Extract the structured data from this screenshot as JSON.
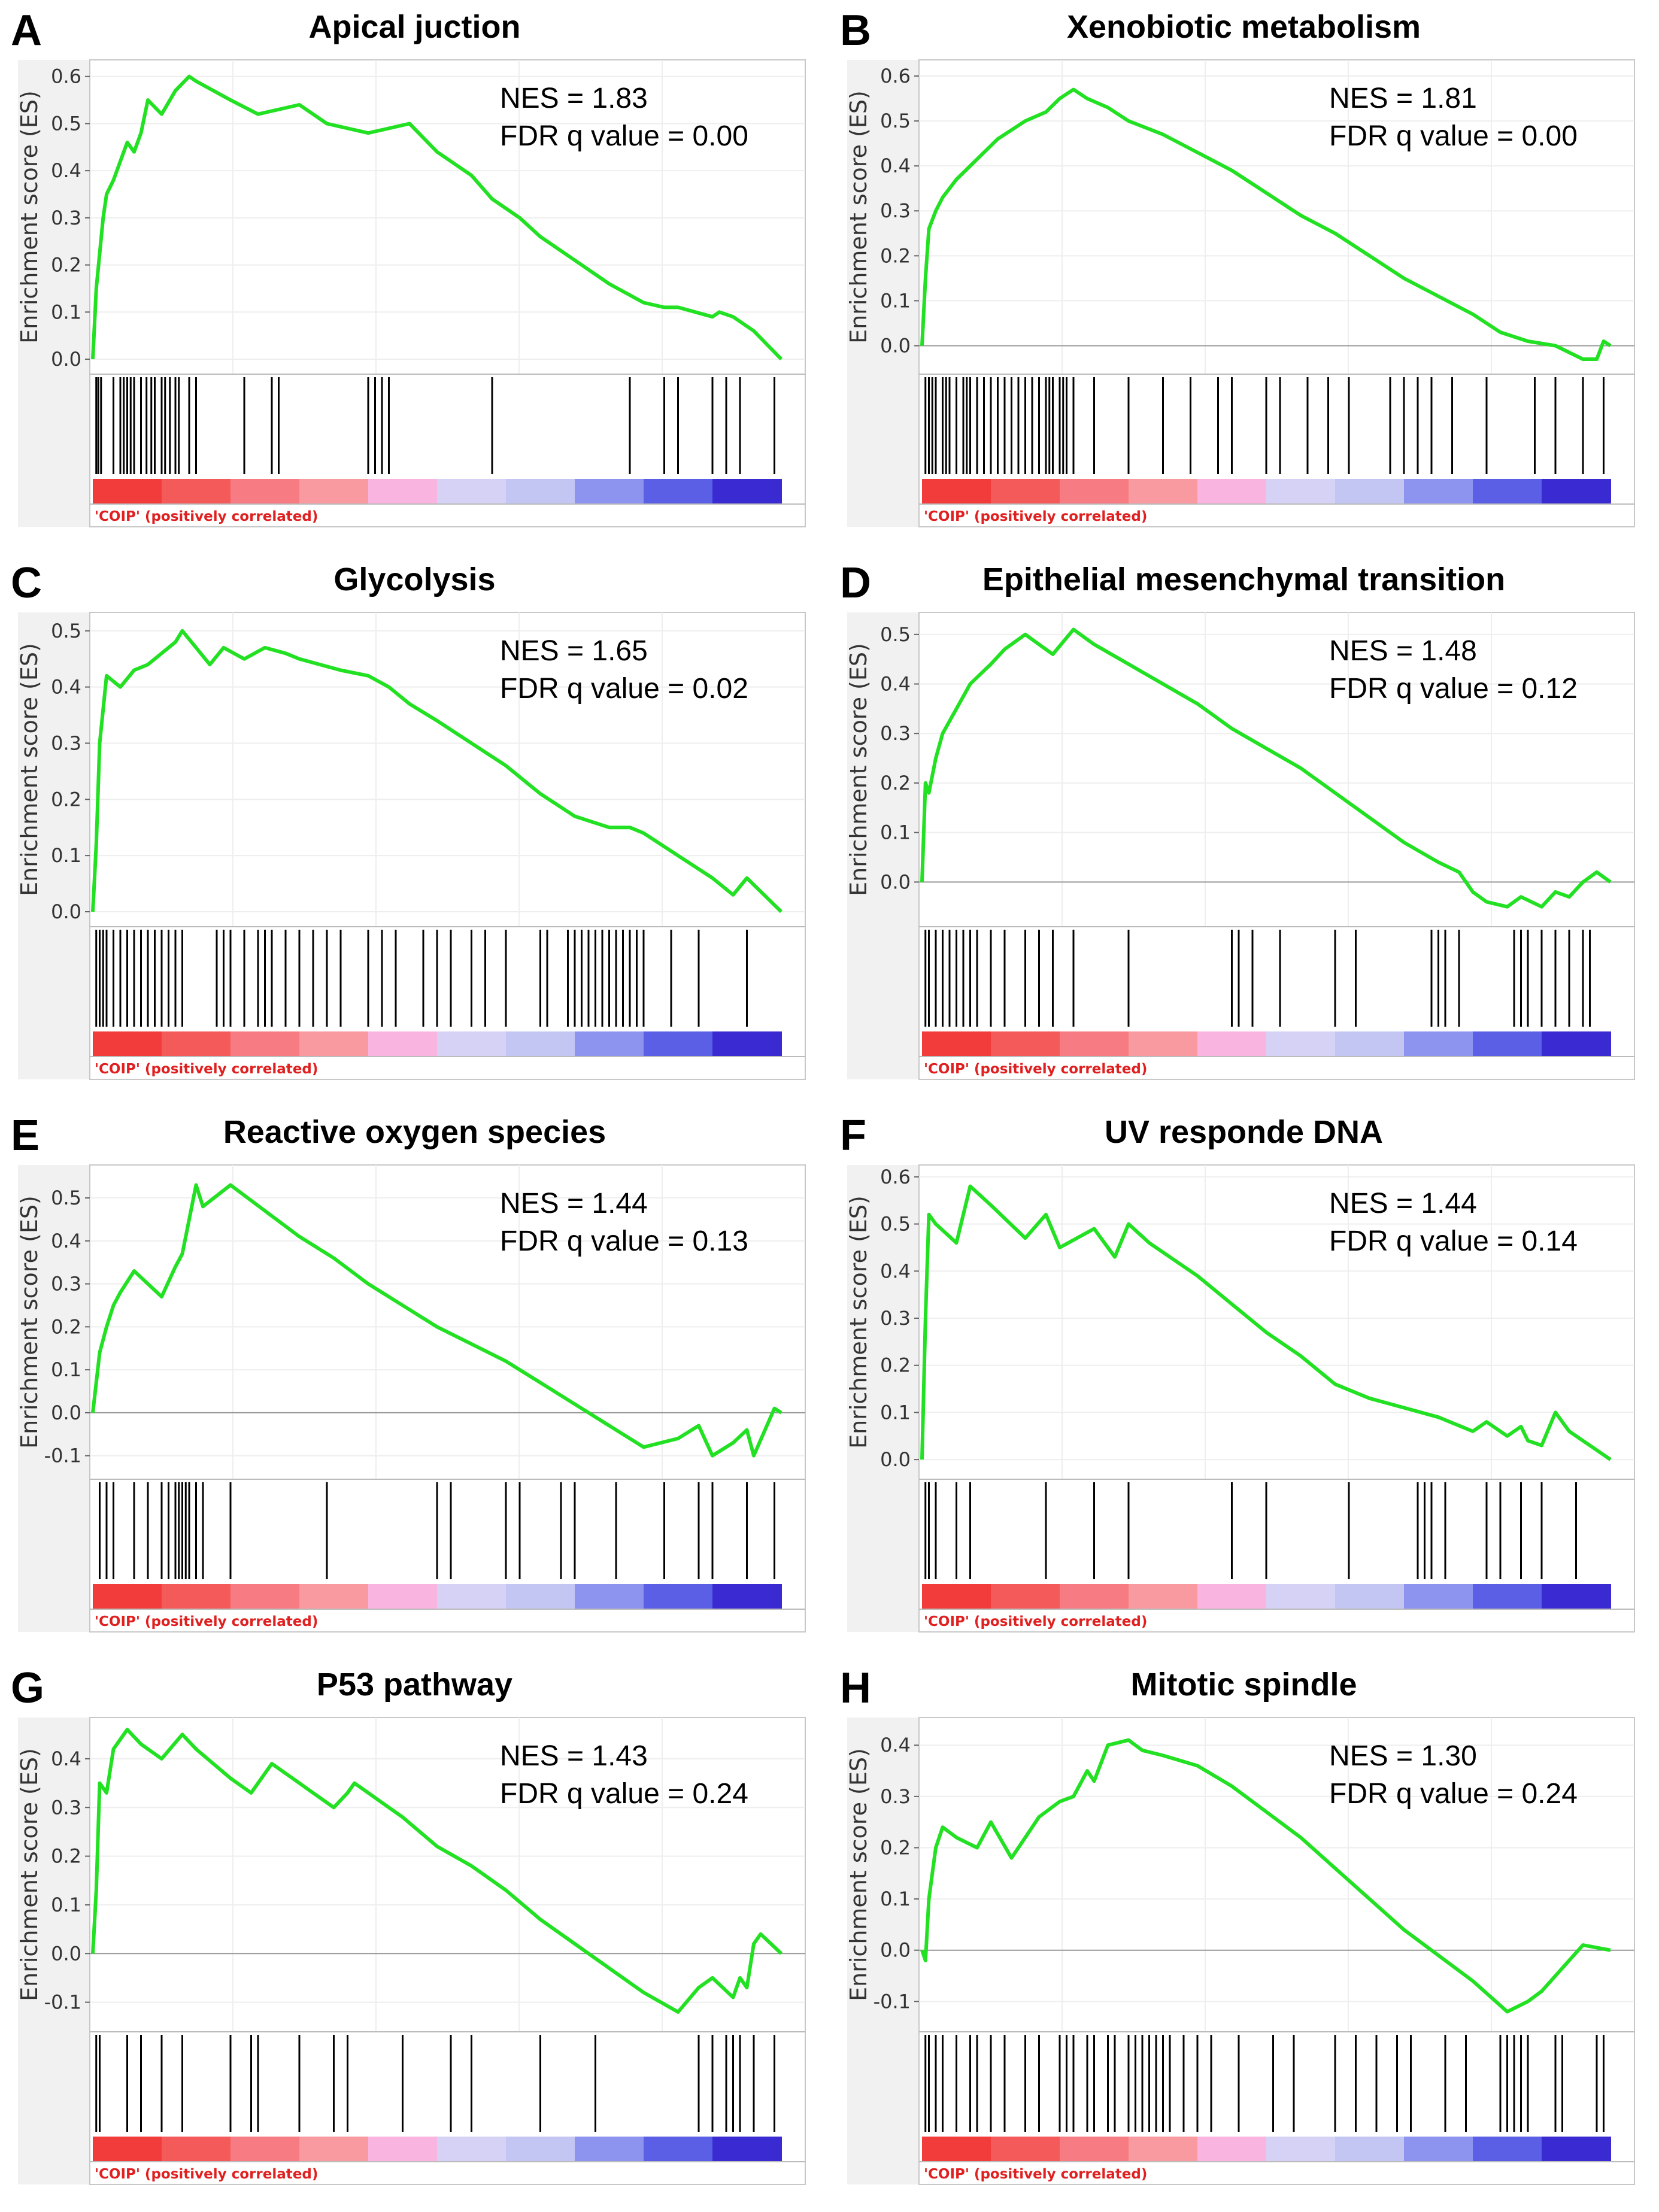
{
  "figure": {
    "ylabel": "Enrichment score (ES)",
    "phenotype_label": "'COIP' (positively correlated)",
    "nes_prefix": "NES = ",
    "fdr_prefix": "FDR q value = ",
    "line_color": "#22e022",
    "gradient_colors": [
      "#f23b3b",
      "#f55a5a",
      "#f77b82",
      "#f99aa0",
      "#f9b4e0",
      "#d6d2f5",
      "#c3c6f2",
      "#8d94ef",
      "#5a5fe5",
      "#3a2ad2"
    ]
  },
  "panels": [
    {
      "letter": "A",
      "title": "Apical  juction",
      "nes": "1.83",
      "fdr": "0.00",
      "chart_data": {
        "type": "line",
        "title": "Apical  juction",
        "ylabel": "Enrichment score (ES)",
        "yticks": [
          "0.0",
          "0.1",
          "0.2",
          "0.3",
          "0.4",
          "0.5",
          "0.6"
        ],
        "ylim": [
          0,
          0.62
        ],
        "xlim": [
          0,
          1
        ],
        "zero_line": false,
        "x": [
          0,
          0.005,
          0.015,
          0.02,
          0.03,
          0.04,
          0.05,
          0.06,
          0.07,
          0.08,
          0.1,
          0.12,
          0.14,
          0.15,
          0.2,
          0.24,
          0.3,
          0.34,
          0.4,
          0.46,
          0.5,
          0.55,
          0.58,
          0.62,
          0.65,
          0.7,
          0.75,
          0.8,
          0.83,
          0.85,
          0.9,
          0.91,
          0.93,
          0.96,
          1.0
        ],
        "y": [
          0,
          0.15,
          0.3,
          0.35,
          0.38,
          0.42,
          0.46,
          0.44,
          0.48,
          0.55,
          0.52,
          0.57,
          0.6,
          0.59,
          0.55,
          0.52,
          0.54,
          0.5,
          0.48,
          0.5,
          0.44,
          0.39,
          0.34,
          0.3,
          0.26,
          0.21,
          0.16,
          0.12,
          0.11,
          0.11,
          0.09,
          0.1,
          0.09,
          0.06,
          0.0
        ],
        "hits": [
          0.005,
          0.008,
          0.012,
          0.03,
          0.04,
          0.045,
          0.05,
          0.055,
          0.06,
          0.07,
          0.078,
          0.085,
          0.09,
          0.1,
          0.105,
          0.112,
          0.12,
          0.125,
          0.14,
          0.15,
          0.22,
          0.26,
          0.27,
          0.4,
          0.41,
          0.42,
          0.43,
          0.58,
          0.78,
          0.83,
          0.85,
          0.9,
          0.92,
          0.94,
          0.99
        ]
      }
    },
    {
      "letter": "B",
      "title": "Xenobiotic metabolism",
      "nes": "1.81",
      "fdr": "0.00",
      "chart_data": {
        "type": "line",
        "title": "Xenobiotic metabolism",
        "ylabel": "Enrichment score (ES)",
        "yticks": [
          "0.0",
          "0.1",
          "0.2",
          "0.3",
          "0.4",
          "0.5",
          "0.6"
        ],
        "ylim": [
          -0.03,
          0.62
        ],
        "xlim": [
          0,
          1
        ],
        "zero_line": true,
        "x": [
          0,
          0.005,
          0.01,
          0.02,
          0.03,
          0.05,
          0.07,
          0.09,
          0.11,
          0.13,
          0.15,
          0.18,
          0.2,
          0.22,
          0.24,
          0.27,
          0.3,
          0.35,
          0.4,
          0.45,
          0.5,
          0.55,
          0.6,
          0.65,
          0.7,
          0.75,
          0.8,
          0.84,
          0.88,
          0.92,
          0.96,
          0.98,
          0.99,
          1.0
        ],
        "y": [
          0,
          0.15,
          0.26,
          0.3,
          0.33,
          0.37,
          0.4,
          0.43,
          0.46,
          0.48,
          0.5,
          0.52,
          0.55,
          0.57,
          0.55,
          0.53,
          0.5,
          0.47,
          0.43,
          0.39,
          0.34,
          0.29,
          0.25,
          0.2,
          0.15,
          0.11,
          0.07,
          0.03,
          0.01,
          0.0,
          -0.03,
          -0.03,
          0.01,
          0.0
        ],
        "hits": [
          0.005,
          0.01,
          0.015,
          0.02,
          0.03,
          0.035,
          0.04,
          0.05,
          0.06,
          0.065,
          0.07,
          0.08,
          0.09,
          0.1,
          0.11,
          0.12,
          0.13,
          0.14,
          0.15,
          0.16,
          0.17,
          0.18,
          0.185,
          0.19,
          0.2,
          0.205,
          0.21,
          0.22,
          0.25,
          0.3,
          0.35,
          0.39,
          0.43,
          0.45,
          0.5,
          0.52,
          0.56,
          0.59,
          0.62,
          0.68,
          0.7,
          0.72,
          0.74,
          0.77,
          0.82,
          0.89,
          0.92,
          0.96,
          0.99
        ]
      }
    },
    {
      "letter": "C",
      "title": "Glycolysis",
      "nes": "1.65",
      "fdr": "0.02",
      "chart_data": {
        "type": "line",
        "title": "Glycolysis",
        "ylabel": "Enrichment score (ES)",
        "yticks": [
          "0.0",
          "0.1",
          "0.2",
          "0.3",
          "0.4",
          "0.5"
        ],
        "ylim": [
          0,
          0.52
        ],
        "xlim": [
          0,
          1
        ],
        "zero_line": false,
        "x": [
          0,
          0.005,
          0.01,
          0.02,
          0.04,
          0.06,
          0.08,
          0.1,
          0.12,
          0.13,
          0.15,
          0.17,
          0.19,
          0.22,
          0.25,
          0.28,
          0.3,
          0.33,
          0.36,
          0.4,
          0.43,
          0.46,
          0.5,
          0.55,
          0.6,
          0.65,
          0.7,
          0.75,
          0.78,
          0.8,
          0.85,
          0.9,
          0.93,
          0.95,
          1.0
        ],
        "y": [
          0,
          0.12,
          0.3,
          0.42,
          0.4,
          0.43,
          0.44,
          0.46,
          0.48,
          0.5,
          0.47,
          0.44,
          0.47,
          0.45,
          0.47,
          0.46,
          0.45,
          0.44,
          0.43,
          0.42,
          0.4,
          0.37,
          0.34,
          0.3,
          0.26,
          0.21,
          0.17,
          0.15,
          0.15,
          0.14,
          0.1,
          0.06,
          0.03,
          0.06,
          0.0
        ],
        "hits": [
          0.005,
          0.01,
          0.015,
          0.02,
          0.03,
          0.04,
          0.05,
          0.06,
          0.07,
          0.08,
          0.09,
          0.1,
          0.11,
          0.12,
          0.13,
          0.18,
          0.19,
          0.2,
          0.22,
          0.24,
          0.25,
          0.26,
          0.28,
          0.3,
          0.32,
          0.34,
          0.36,
          0.4,
          0.42,
          0.44,
          0.48,
          0.5,
          0.52,
          0.55,
          0.57,
          0.6,
          0.65,
          0.66,
          0.69,
          0.7,
          0.71,
          0.72,
          0.73,
          0.74,
          0.75,
          0.76,
          0.77,
          0.78,
          0.79,
          0.8,
          0.84,
          0.88,
          0.95
        ]
      }
    },
    {
      "letter": "D",
      "title": "Epithelial mesenchymal transition",
      "nes": "1.48",
      "fdr": "0.12",
      "chart_data": {
        "type": "line",
        "title": "Epithelial mesenchymal transition",
        "ylabel": "Enrichment score (ES)",
        "yticks": [
          "0.0",
          "0.1",
          "0.2",
          "0.3",
          "0.4",
          "0.5"
        ],
        "ylim": [
          -0.06,
          0.53
        ],
        "xlim": [
          0,
          1
        ],
        "zero_line": true,
        "x": [
          0,
          0.005,
          0.01,
          0.02,
          0.03,
          0.05,
          0.07,
          0.1,
          0.12,
          0.15,
          0.17,
          0.19,
          0.22,
          0.25,
          0.3,
          0.35,
          0.4,
          0.45,
          0.5,
          0.55,
          0.6,
          0.65,
          0.7,
          0.75,
          0.78,
          0.8,
          0.82,
          0.85,
          0.87,
          0.9,
          0.92,
          0.94,
          0.96,
          0.98,
          1.0
        ],
        "y": [
          0,
          0.2,
          0.18,
          0.25,
          0.3,
          0.35,
          0.4,
          0.44,
          0.47,
          0.5,
          0.48,
          0.46,
          0.51,
          0.48,
          0.44,
          0.4,
          0.36,
          0.31,
          0.27,
          0.23,
          0.18,
          0.13,
          0.08,
          0.04,
          0.02,
          -0.02,
          -0.04,
          -0.05,
          -0.03,
          -0.05,
          -0.02,
          -0.03,
          0.0,
          0.02,
          0.0
        ],
        "hits": [
          0.005,
          0.01,
          0.02,
          0.03,
          0.04,
          0.05,
          0.06,
          0.07,
          0.08,
          0.1,
          0.12,
          0.15,
          0.17,
          0.19,
          0.22,
          0.3,
          0.45,
          0.46,
          0.48,
          0.52,
          0.6,
          0.63,
          0.74,
          0.75,
          0.76,
          0.78,
          0.86,
          0.87,
          0.88,
          0.9,
          0.92,
          0.94,
          0.96,
          0.97
        ]
      }
    },
    {
      "letter": "E",
      "title": "Reactive oxygen species",
      "nes": "1.44",
      "fdr": "0.13",
      "chart_data": {
        "type": "line",
        "title": "Reactive oxygen species",
        "ylabel": "Enrichment score (ES)",
        "yticks": [
          "-0.1",
          "0.0",
          "0.1",
          "0.2",
          "0.3",
          "0.4",
          "0.5"
        ],
        "ylim": [
          -0.12,
          0.56
        ],
        "xlim": [
          0,
          1
        ],
        "zero_line": true,
        "x": [
          0,
          0.01,
          0.02,
          0.03,
          0.04,
          0.06,
          0.08,
          0.1,
          0.12,
          0.13,
          0.14,
          0.15,
          0.16,
          0.2,
          0.25,
          0.3,
          0.35,
          0.4,
          0.45,
          0.5,
          0.55,
          0.6,
          0.65,
          0.7,
          0.75,
          0.8,
          0.85,
          0.88,
          0.9,
          0.93,
          0.95,
          0.96,
          0.99,
          1.0
        ],
        "y": [
          0,
          0.14,
          0.2,
          0.25,
          0.28,
          0.33,
          0.3,
          0.27,
          0.34,
          0.37,
          0.45,
          0.53,
          0.48,
          0.53,
          0.47,
          0.41,
          0.36,
          0.3,
          0.25,
          0.2,
          0.16,
          0.12,
          0.07,
          0.02,
          -0.03,
          -0.08,
          -0.06,
          -0.03,
          -0.1,
          -0.07,
          -0.04,
          -0.1,
          0.01,
          0.0
        ],
        "hits": [
          0.01,
          0.02,
          0.03,
          0.06,
          0.08,
          0.1,
          0.11,
          0.12,
          0.125,
          0.13,
          0.135,
          0.14,
          0.15,
          0.16,
          0.2,
          0.34,
          0.5,
          0.52,
          0.6,
          0.62,
          0.68,
          0.7,
          0.76,
          0.83,
          0.88,
          0.9,
          0.95,
          0.99
        ]
      }
    },
    {
      "letter": "F",
      "title": "UV responde DNA",
      "nes": "1.44",
      "fdr": "0.14",
      "chart_data": {
        "type": "line",
        "title": "UV responde DNA",
        "ylabel": "Enrichment score (ES)",
        "yticks": [
          "0.0",
          "0.1",
          "0.2",
          "0.3",
          "0.4",
          "0.5",
          "0.6"
        ],
        "ylim": [
          -0.01,
          0.61
        ],
        "xlim": [
          0,
          1
        ],
        "zero_line": false,
        "x": [
          0,
          0.005,
          0.01,
          0.02,
          0.05,
          0.07,
          0.1,
          0.15,
          0.18,
          0.2,
          0.25,
          0.28,
          0.3,
          0.33,
          0.4,
          0.45,
          0.5,
          0.55,
          0.6,
          0.65,
          0.7,
          0.75,
          0.8,
          0.82,
          0.85,
          0.87,
          0.88,
          0.9,
          0.92,
          0.94,
          1.0
        ],
        "y": [
          0,
          0.3,
          0.52,
          0.5,
          0.46,
          0.58,
          0.54,
          0.47,
          0.52,
          0.45,
          0.49,
          0.43,
          0.5,
          0.46,
          0.39,
          0.33,
          0.27,
          0.22,
          0.16,
          0.13,
          0.11,
          0.09,
          0.06,
          0.08,
          0.05,
          0.07,
          0.04,
          0.03,
          0.1,
          0.06,
          0.0
        ],
        "hits": [
          0.005,
          0.01,
          0.02,
          0.05,
          0.07,
          0.18,
          0.25,
          0.3,
          0.45,
          0.5,
          0.62,
          0.72,
          0.73,
          0.74,
          0.76,
          0.82,
          0.84,
          0.87,
          0.9,
          0.95
        ]
      }
    },
    {
      "letter": "G",
      "title": "P53 pathway",
      "nes": "1.43",
      "fdr": "0.24",
      "chart_data": {
        "type": "line",
        "title": "P53 pathway",
        "ylabel": "Enrichment score (ES)",
        "yticks": [
          "-0.1",
          "0.0",
          "0.1",
          "0.2",
          "0.3",
          "0.4"
        ],
        "ylim": [
          -0.13,
          0.47
        ],
        "xlim": [
          0,
          1
        ],
        "zero_line": true,
        "x": [
          0,
          0.005,
          0.01,
          0.02,
          0.03,
          0.05,
          0.07,
          0.1,
          0.13,
          0.15,
          0.2,
          0.23,
          0.25,
          0.26,
          0.3,
          0.35,
          0.37,
          0.38,
          0.45,
          0.5,
          0.55,
          0.6,
          0.65,
          0.7,
          0.75,
          0.8,
          0.85,
          0.88,
          0.9,
          0.93,
          0.94,
          0.95,
          0.96,
          0.97,
          1.0
        ],
        "y": [
          0,
          0.13,
          0.35,
          0.33,
          0.42,
          0.46,
          0.43,
          0.4,
          0.45,
          0.42,
          0.36,
          0.33,
          0.37,
          0.39,
          0.35,
          0.3,
          0.33,
          0.35,
          0.28,
          0.22,
          0.18,
          0.13,
          0.07,
          0.02,
          -0.03,
          -0.08,
          -0.12,
          -0.07,
          -0.05,
          -0.09,
          -0.05,
          -0.07,
          0.02,
          0.04,
          0.0
        ],
        "hits": [
          0.005,
          0.01,
          0.05,
          0.07,
          0.1,
          0.1,
          0.13,
          0.2,
          0.23,
          0.24,
          0.3,
          0.35,
          0.37,
          0.45,
          0.52,
          0.55,
          0.65,
          0.73,
          0.88,
          0.9,
          0.92,
          0.93,
          0.94,
          0.96,
          0.99
        ]
      }
    },
    {
      "letter": "H",
      "title": "Mitotic spindle",
      "nes": "1.30",
      "fdr": "0.24",
      "chart_data": {
        "type": "line",
        "title": "Mitotic spindle",
        "ylabel": "Enrichment score (ES)",
        "yticks": [
          "-0.1",
          "0.0",
          "0.1",
          "0.2",
          "0.3",
          "0.4"
        ],
        "ylim": [
          -0.13,
          0.44
        ],
        "xlim": [
          0,
          1
        ],
        "zero_line": true,
        "x": [
          0,
          0.005,
          0.01,
          0.02,
          0.03,
          0.05,
          0.08,
          0.1,
          0.13,
          0.15,
          0.17,
          0.2,
          0.22,
          0.24,
          0.25,
          0.27,
          0.3,
          0.32,
          0.35,
          0.4,
          0.45,
          0.5,
          0.55,
          0.6,
          0.65,
          0.7,
          0.75,
          0.8,
          0.85,
          0.88,
          0.9,
          0.92,
          0.94,
          0.96,
          1.0
        ],
        "y": [
          0,
          -0.02,
          0.1,
          0.2,
          0.24,
          0.22,
          0.2,
          0.25,
          0.18,
          0.22,
          0.26,
          0.29,
          0.3,
          0.35,
          0.33,
          0.4,
          0.41,
          0.39,
          0.38,
          0.36,
          0.32,
          0.27,
          0.22,
          0.16,
          0.1,
          0.04,
          -0.01,
          -0.06,
          -0.12,
          -0.1,
          -0.08,
          -0.05,
          -0.02,
          0.01,
          0.0
        ],
        "hits": [
          0.005,
          0.01,
          0.02,
          0.03,
          0.05,
          0.07,
          0.08,
          0.1,
          0.12,
          0.15,
          0.17,
          0.2,
          0.21,
          0.22,
          0.24,
          0.25,
          0.27,
          0.28,
          0.3,
          0.31,
          0.32,
          0.33,
          0.34,
          0.35,
          0.36,
          0.38,
          0.4,
          0.42,
          0.46,
          0.51,
          0.54,
          0.6,
          0.63,
          0.66,
          0.69,
          0.71,
          0.76,
          0.79,
          0.84,
          0.85,
          0.86,
          0.87,
          0.88,
          0.92,
          0.93,
          0.98,
          0.99
        ]
      }
    }
  ]
}
